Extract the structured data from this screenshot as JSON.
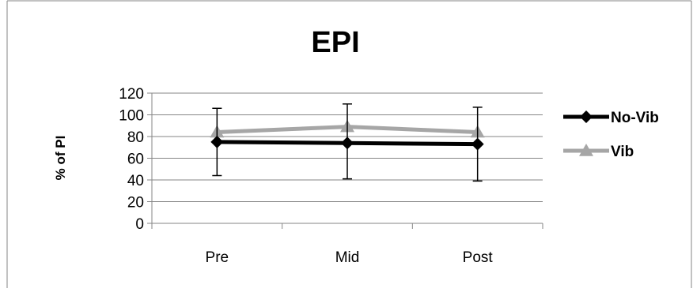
{
  "chart_data": {
    "type": "line",
    "title": "EPI",
    "xlabel": "",
    "ylabel": "% of PI",
    "categories": [
      "Pre",
      "Mid",
      "Post"
    ],
    "ylim": [
      0,
      120
    ],
    "yticks": [
      "0",
      "20",
      "40",
      "60",
      "80",
      "100",
      "120"
    ],
    "grid": true,
    "legend_position": "right",
    "series": [
      {
        "name": "No-Vib",
        "values": [
          75,
          74,
          73
        ],
        "error_low": [
          44,
          41,
          39
        ],
        "error_high": [
          106,
          110,
          107
        ],
        "color": "#000000",
        "marker": "diamond"
      },
      {
        "name": "Vib",
        "values": [
          84,
          89,
          84
        ],
        "color": "#a6a6a6",
        "marker": "triangle"
      }
    ]
  },
  "colors": {
    "gridline": "#868686",
    "axis": "#868686",
    "frame_border": "#868686",
    "error_bar": "#000000"
  }
}
